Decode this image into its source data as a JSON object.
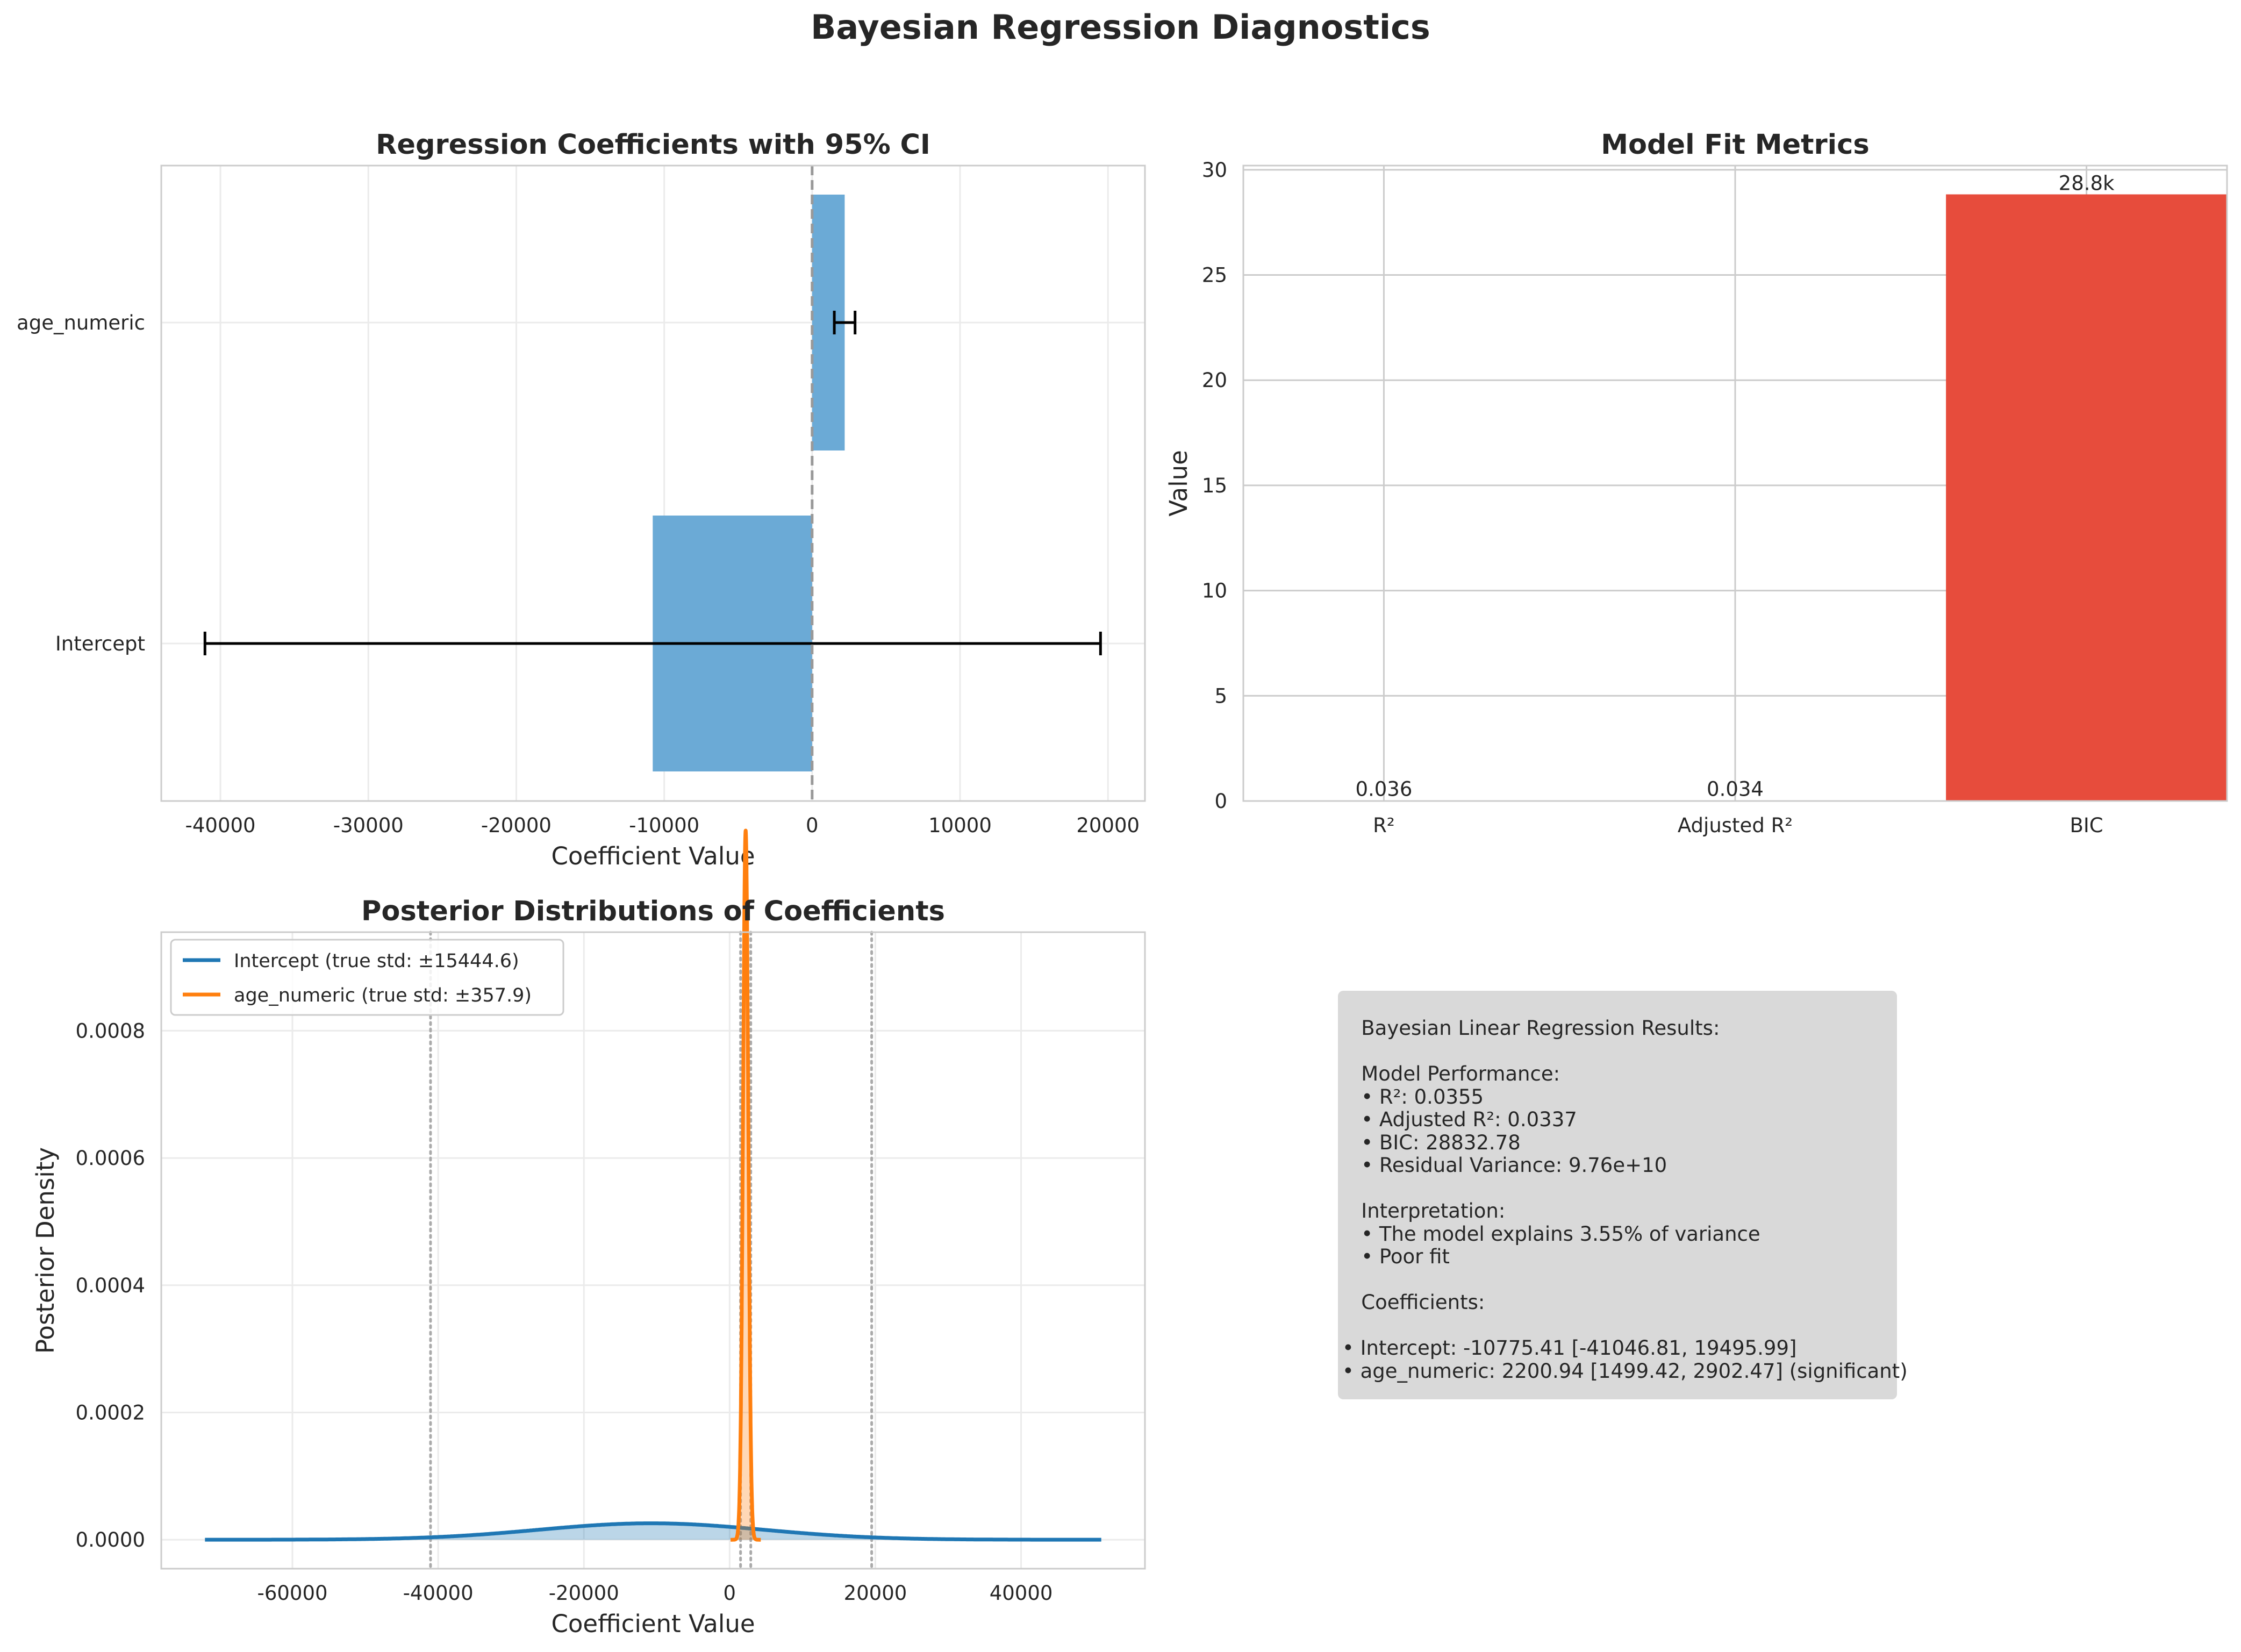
{
  "figure": {
    "title": "Bayesian Regression Diagnostics"
  },
  "chart_data": [
    {
      "type": "bar",
      "orientation": "horizontal",
      "title": "Regression Coefficients with 95% CI",
      "xlabel": "Coefficient Value",
      "ylabel": "",
      "categories": [
        "Intercept",
        "age_numeric"
      ],
      "values": [
        -10775.41,
        2200.94
      ],
      "ci": [
        [
          -41046.81,
          19495.99
        ],
        [
          1499.42,
          2902.47
        ]
      ],
      "xlim": [
        -44000,
        22500
      ],
      "xticks": [
        -40000,
        -30000,
        -20000,
        -10000,
        0,
        10000,
        20000
      ],
      "xtick_labels": [
        "-40000",
        "-30000",
        "-20000",
        "-10000",
        "0",
        "10000",
        "20000"
      ],
      "reference_line_x": 0,
      "bar_color": "#6baad6",
      "grid": true
    },
    {
      "type": "bar",
      "title": "Model Fit Metrics",
      "xlabel": "",
      "ylabel": "Value",
      "categories": [
        "R²",
        "Adjusted R²",
        "BIC"
      ],
      "values": [
        0.036,
        0.034,
        28.832
      ],
      "bar_labels": [
        "0.036",
        "0.034",
        "28.8k"
      ],
      "ylim": [
        0,
        30.2
      ],
      "yticks": [
        0,
        5,
        10,
        15,
        20,
        25,
        30
      ],
      "ytick_labels": [
        "0",
        "5",
        "10",
        "15",
        "20",
        "25",
        "30"
      ],
      "colors": [
        "#3498db",
        "#2ecc71",
        "#e74c3c"
      ],
      "grid": true
    },
    {
      "type": "line",
      "title": "Posterior Distributions of Coefficients",
      "xlabel": "Coefficient Value",
      "ylabel": "Posterior Density",
      "xlim": [
        -78000,
        57000
      ],
      "ylim": [
        -4.55e-05,
        0.000955
      ],
      "xticks": [
        -60000,
        -40000,
        -20000,
        0,
        20000,
        40000
      ],
      "xtick_labels": [
        "-60000",
        "-40000",
        "-20000",
        "0",
        "20000",
        "40000"
      ],
      "yticks": [
        0,
        0.0002,
        0.0004,
        0.0006,
        0.0008
      ],
      "ytick_labels": [
        "0.0000",
        "0.0002",
        "0.0004",
        "0.0006",
        "0.0008"
      ],
      "series": [
        {
          "name": "Intercept (true std: ±15444.6)",
          "mean": -10775.41,
          "std": 15444.6,
          "x_range": [
            -72000,
            51000
          ],
          "color": "#1f77b4"
        },
        {
          "name": "age_numeric (true std: ±357.9)",
          "mean": 2200.94,
          "std": 357.9,
          "x_range": [
            127,
            4274
          ],
          "color": "#ff7f0e"
        }
      ],
      "ci_lines": [
        -41046.81,
        19495.99,
        1499.42,
        2902.47
      ],
      "legend_position": "upper-left",
      "grid": true
    }
  ],
  "summary": {
    "text": "   Bayesian Linear Regression Results:\n\n   Model Performance:\n   • R²: 0.0355\n   • Adjusted R²: 0.0337\n   • BIC: 28832.78\n   • Residual Variance: 9.76e+10\n\n   Interpretation:\n   • The model explains 3.55% of variance\n   • Poor fit\n\n   Coefficients:\n\n• Intercept: -10775.41 [-41046.81, 19495.99]\n• age_numeric: 2200.94 [1499.42, 2902.47] (significant)"
  }
}
